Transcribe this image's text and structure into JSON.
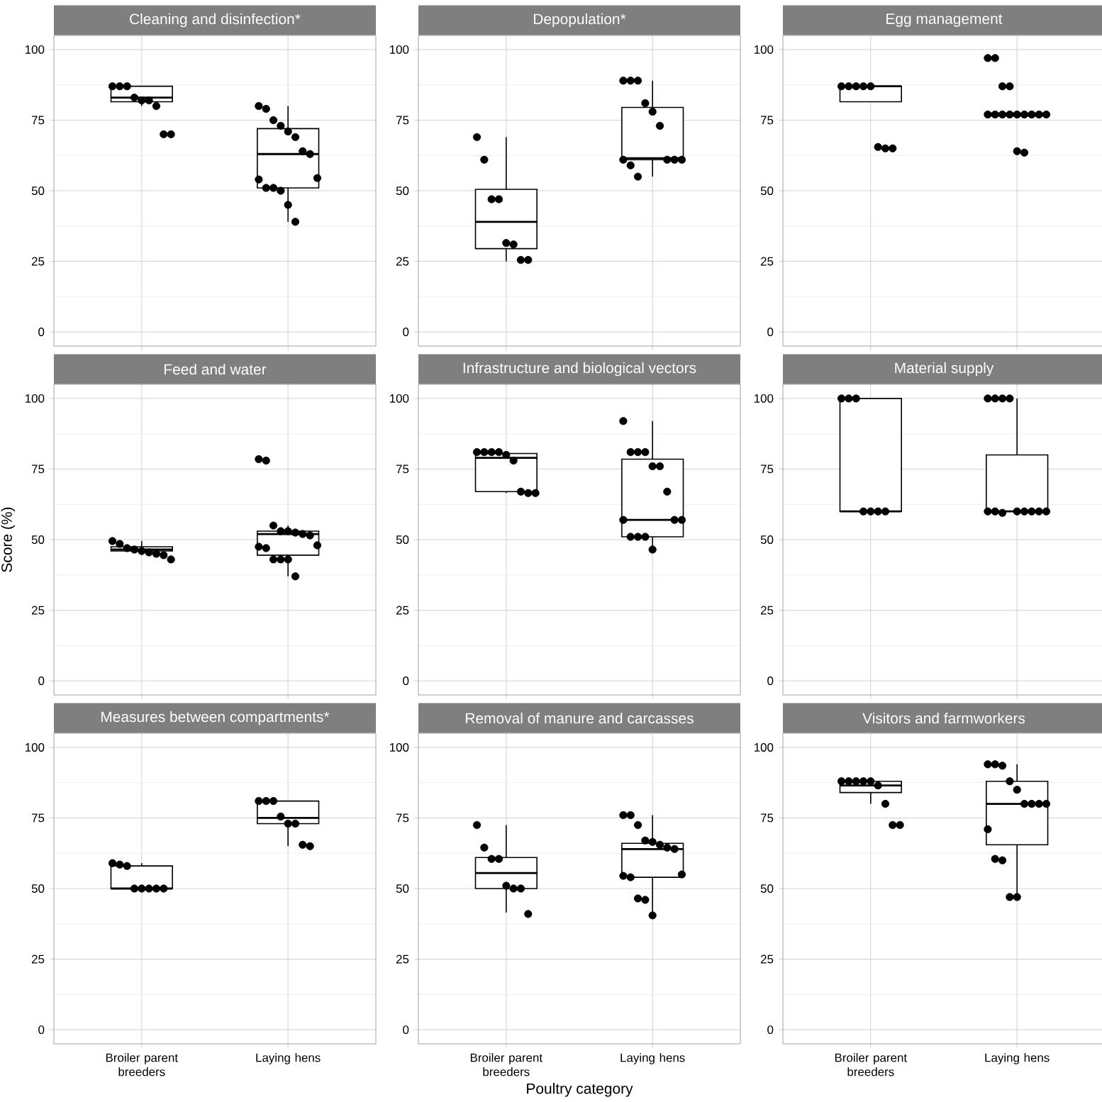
{
  "chart_data": [
    {
      "type": "box",
      "title": "Cleaning and disinfection*",
      "categories": [
        "Broiler parent breeders",
        "Laying hens"
      ],
      "boxes": [
        {
          "low": 80,
          "q1": 81.5,
          "median": 83,
          "q3": 87,
          "high": 87
        },
        {
          "low": 39,
          "q1": 51,
          "median": 63,
          "q3": 72,
          "high": 80
        }
      ],
      "series": [
        {
          "type": "scatter",
          "color": "#000000",
          "x": [
            "Broiler parent breeders",
            "Broiler parent breeders",
            "Broiler parent breeders",
            "Broiler parent breeders",
            "Broiler parent breeders",
            "Broiler parent breeders",
            "Broiler parent breeders",
            "Broiler parent breeders",
            "Broiler parent breeders",
            "Laying hens",
            "Laying hens",
            "Laying hens",
            "Laying hens",
            "Laying hens",
            "Laying hens",
            "Laying hens",
            "Laying hens",
            "Laying hens",
            "Laying hens",
            "Laying hens",
            "Laying hens",
            "Laying hens",
            "Laying hens",
            "Laying hens"
          ],
          "values": [
            87,
            87,
            87,
            83,
            82,
            82,
            80,
            70,
            70,
            80,
            79,
            75,
            73,
            71,
            69,
            64,
            63,
            54.5,
            54,
            51,
            51,
            50,
            45,
            39
          ]
        }
      ],
      "ylim": [
        -5,
        105
      ],
      "yticks": [
        0,
        25,
        50,
        75,
        100
      ],
      "grid": true,
      "marker": "circle",
      "tick_labels": "y"
    },
    {
      "type": "box",
      "title": "Depopulation*",
      "categories": [
        "Broiler parent breeders",
        "Laying hens"
      ],
      "boxes": [
        {
          "low": 25,
          "q1": 29.5,
          "median": 39,
          "q3": 50.5,
          "high": 69
        },
        {
          "low": 55,
          "q1": 61,
          "median": 61.5,
          "q3": 79.5,
          "high": 89
        }
      ],
      "series": [
        {
          "type": "scatter",
          "color": "#000000",
          "x": [
            "Broiler parent breeders",
            "Broiler parent breeders",
            "Broiler parent breeders",
            "Broiler parent breeders",
            "Broiler parent breeders",
            "Broiler parent breeders",
            "Broiler parent breeders",
            "Broiler parent breeders",
            "Laying hens",
            "Laying hens",
            "Laying hens",
            "Laying hens",
            "Laying hens",
            "Laying hens",
            "Laying hens",
            "Laying hens",
            "Laying hens",
            "Laying hens",
            "Laying hens",
            "Laying hens"
          ],
          "values": [
            69,
            61,
            47,
            47,
            31.5,
            31,
            25.5,
            25.5,
            89,
            89,
            89,
            81,
            78,
            73,
            61,
            61,
            61,
            61,
            59,
            55
          ]
        }
      ],
      "ylim": [
        -5,
        105
      ],
      "yticks": [
        0,
        25,
        50,
        75,
        100
      ],
      "grid": true,
      "marker": "circle",
      "tick_labels": "y"
    },
    {
      "type": "box",
      "title": "Egg management",
      "categories": [
        "Broiler parent breeders",
        "Laying hens"
      ],
      "boxes": [
        {
          "low": 81.5,
          "q1": 81.5,
          "median": 87,
          "q3": 87,
          "high": 87
        },
        {
          "low": 76.5,
          "q1": 76.5,
          "median": 77,
          "q3": 77.5,
          "high": 77.5
        }
      ],
      "series": [
        {
          "type": "scatter",
          "color": "#000000",
          "x": [
            "Broiler parent breeders",
            "Broiler parent breeders",
            "Broiler parent breeders",
            "Broiler parent breeders",
            "Broiler parent breeders",
            "Broiler parent breeders",
            "Broiler parent breeders",
            "Broiler parent breeders",
            "Laying hens",
            "Laying hens",
            "Laying hens",
            "Laying hens",
            "Laying hens",
            "Laying hens",
            "Laying hens",
            "Laying hens",
            "Laying hens",
            "Laying hens",
            "Laying hens",
            "Laying hens",
            "Laying hens",
            "Laying hens",
            "Laying hens"
          ],
          "values": [
            87,
            87,
            87,
            87,
            87,
            65.5,
            65,
            65,
            97,
            97,
            87,
            87,
            77,
            77,
            77,
            77,
            77,
            77,
            77,
            77,
            77,
            64,
            63.5
          ]
        }
      ],
      "ylim": [
        -5,
        105
      ],
      "yticks": [
        0,
        25,
        50,
        75,
        100
      ],
      "grid": true,
      "marker": "circle",
      "tick_labels": "y"
    },
    {
      "type": "box",
      "title": "Feed and water",
      "ylabel": "Score (%)",
      "categories": [
        "Broiler parent breeders",
        "Laying hens"
      ],
      "boxes": [
        {
          "low": 44.5,
          "q1": 46,
          "median": 46.5,
          "q3": 47.5,
          "high": 49.5
        },
        {
          "low": 37,
          "q1": 44.5,
          "median": 52,
          "q3": 53,
          "high": 55
        }
      ],
      "series": [
        {
          "type": "scatter",
          "color": "#000000",
          "x": [
            "Broiler parent breeders",
            "Broiler parent breeders",
            "Broiler parent breeders",
            "Broiler parent breeders",
            "Broiler parent breeders",
            "Broiler parent breeders",
            "Broiler parent breeders",
            "Broiler parent breeders",
            "Broiler parent breeders",
            "Laying hens",
            "Laying hens",
            "Laying hens",
            "Laying hens",
            "Laying hens",
            "Laying hens",
            "Laying hens",
            "Laying hens",
            "Laying hens",
            "Laying hens",
            "Laying hens",
            "Laying hens",
            "Laying hens",
            "Laying hens",
            "Laying hens"
          ],
          "values": [
            49.5,
            48.5,
            47,
            46.5,
            46,
            45.5,
            45,
            44.5,
            43,
            78.5,
            78,
            55,
            53,
            53,
            52.5,
            52,
            51.5,
            48,
            47.5,
            47,
            43,
            43,
            43,
            37
          ]
        }
      ],
      "ylim": [
        -5,
        105
      ],
      "yticks": [
        0,
        25,
        50,
        75,
        100
      ],
      "grid": true,
      "marker": "circle",
      "tick_labels": "y"
    },
    {
      "type": "box",
      "title": "Infrastructure and biological vectors",
      "categories": [
        "Broiler parent breeders",
        "Laying hens"
      ],
      "boxes": [
        {
          "low": 66.5,
          "q1": 67,
          "median": 79,
          "q3": 80.5,
          "high": 81
        },
        {
          "low": 46,
          "q1": 51,
          "median": 57,
          "q3": 78.5,
          "high": 92
        }
      ],
      "series": [
        {
          "type": "scatter",
          "color": "#000000",
          "x": [
            "Broiler parent breeders",
            "Broiler parent breeders",
            "Broiler parent breeders",
            "Broiler parent breeders",
            "Broiler parent breeders",
            "Broiler parent breeders",
            "Broiler parent breeders",
            "Broiler parent breeders",
            "Broiler parent breeders",
            "Laying hens",
            "Laying hens",
            "Laying hens",
            "Laying hens",
            "Laying hens",
            "Laying hens",
            "Laying hens",
            "Laying hens",
            "Laying hens",
            "Laying hens",
            "Laying hens",
            "Laying hens",
            "Laying hens",
            "Laying hens"
          ],
          "values": [
            81,
            81,
            81,
            81,
            80,
            78,
            67,
            66.5,
            66.5,
            92,
            81,
            81,
            81,
            76,
            76,
            67,
            57,
            57,
            57,
            51,
            51,
            51,
            46.5
          ]
        }
      ],
      "ylim": [
        -5,
        105
      ],
      "yticks": [
        0,
        25,
        50,
        75,
        100
      ],
      "grid": true,
      "marker": "circle",
      "tick_labels": "y"
    },
    {
      "type": "box",
      "title": "Material supply",
      "categories": [
        "Broiler parent breeders",
        "Laying hens"
      ],
      "boxes": [
        {
          "low": 60,
          "q1": 60,
          "median": 60,
          "q3": 100,
          "high": 100
        },
        {
          "low": 60,
          "q1": 60,
          "median": 60,
          "q3": 80,
          "high": 100
        }
      ],
      "series": [
        {
          "type": "scatter",
          "color": "#000000",
          "x": [
            "Broiler parent breeders",
            "Broiler parent breeders",
            "Broiler parent breeders",
            "Broiler parent breeders",
            "Broiler parent breeders",
            "Broiler parent breeders",
            "Broiler parent breeders",
            "Laying hens",
            "Laying hens",
            "Laying hens",
            "Laying hens",
            "Laying hens",
            "Laying hens",
            "Laying hens",
            "Laying hens",
            "Laying hens",
            "Laying hens",
            "Laying hens",
            "Laying hens"
          ],
          "values": [
            100,
            100,
            100,
            60,
            60,
            60,
            60,
            100,
            100,
            100,
            100,
            60,
            60,
            60,
            60,
            60,
            60,
            60,
            59.5
          ]
        }
      ],
      "ylim": [
        -5,
        105
      ],
      "yticks": [
        0,
        25,
        50,
        75,
        100
      ],
      "grid": true,
      "marker": "circle",
      "tick_labels": "y"
    },
    {
      "type": "box",
      "title": "Measures between compartments*",
      "categories": [
        "Broiler parent breeders",
        "Laying hens"
      ],
      "boxes": [
        {
          "low": 50,
          "q1": 50,
          "median": 50,
          "q3": 58,
          "high": 59
        },
        {
          "low": 65,
          "q1": 73,
          "median": 75,
          "q3": 81,
          "high": 81
        }
      ],
      "series": [
        {
          "type": "scatter",
          "color": "#000000",
          "x": [
            "Broiler parent breeders",
            "Broiler parent breeders",
            "Broiler parent breeders",
            "Broiler parent breeders",
            "Broiler parent breeders",
            "Broiler parent breeders",
            "Broiler parent breeders",
            "Broiler parent breeders",
            "Laying hens",
            "Laying hens",
            "Laying hens",
            "Laying hens",
            "Laying hens",
            "Laying hens",
            "Laying hens",
            "Laying hens"
          ],
          "values": [
            59,
            58.5,
            58,
            50,
            50,
            50,
            50,
            50,
            81,
            81,
            81,
            75.5,
            73,
            73,
            65.5,
            65
          ]
        }
      ],
      "ylim": [
        -5,
        105
      ],
      "yticks": [
        0,
        25,
        50,
        75,
        100
      ],
      "grid": true,
      "marker": "circle"
    },
    {
      "type": "box",
      "title": "Removal of manure and carcasses",
      "xlabel": "Poultry category",
      "categories": [
        "Broiler parent breeders",
        "Laying hens"
      ],
      "boxes": [
        {
          "low": 41.5,
          "q1": 50,
          "median": 55.5,
          "q3": 61,
          "high": 72.5
        },
        {
          "low": 40.5,
          "q1": 54,
          "median": 64,
          "q3": 66,
          "high": 76
        }
      ],
      "series": [
        {
          "type": "scatter",
          "color": "#000000",
          "x": [
            "Broiler parent breeders",
            "Broiler parent breeders",
            "Broiler parent breeders",
            "Broiler parent breeders",
            "Broiler parent breeders",
            "Broiler parent breeders",
            "Broiler parent breeders",
            "Broiler parent breeders",
            "Laying hens",
            "Laying hens",
            "Laying hens",
            "Laying hens",
            "Laying hens",
            "Laying hens",
            "Laying hens",
            "Laying hens",
            "Laying hens",
            "Laying hens",
            "Laying hens",
            "Laying hens",
            "Laying hens",
            "Laying hens"
          ],
          "values": [
            72.5,
            64.5,
            60.5,
            60.5,
            51,
            50,
            50,
            41,
            76,
            76,
            72.5,
            67,
            66.5,
            65.5,
            64.5,
            64,
            55,
            54.5,
            54,
            46.5,
            46,
            40.5
          ]
        }
      ],
      "ylim": [
        -5,
        105
      ],
      "yticks": [
        0,
        25,
        50,
        75,
        100
      ],
      "grid": true,
      "marker": "circle"
    },
    {
      "type": "box",
      "title": "Visitors and farmworkers",
      "categories": [
        "Broiler parent breeders",
        "Laying hens"
      ],
      "boxes": [
        {
          "low": 80,
          "q1": 84,
          "median": 86.5,
          "q3": 88,
          "high": 88
        },
        {
          "low": 47,
          "q1": 65.5,
          "median": 80,
          "q3": 88,
          "high": 94
        }
      ],
      "series": [
        {
          "type": "scatter",
          "color": "#000000",
          "x": [
            "Broiler parent breeders",
            "Broiler parent breeders",
            "Broiler parent breeders",
            "Broiler parent breeders",
            "Broiler parent breeders",
            "Broiler parent breeders",
            "Broiler parent breeders",
            "Broiler parent breeders",
            "Broiler parent breeders",
            "Laying hens",
            "Laying hens",
            "Laying hens",
            "Laying hens",
            "Laying hens",
            "Laying hens",
            "Laying hens",
            "Laying hens",
            "Laying hens",
            "Laying hens",
            "Laying hens",
            "Laying hens",
            "Laying hens",
            "Laying hens"
          ],
          "values": [
            88,
            88,
            88,
            88,
            88,
            86.5,
            80,
            72.5,
            72.5,
            94,
            94,
            93.5,
            88,
            85,
            80,
            80,
            80,
            80,
            71,
            60.5,
            60,
            47,
            47
          ]
        }
      ],
      "ylim": [
        -5,
        105
      ],
      "yticks": [
        0,
        25,
        50,
        75,
        100
      ],
      "grid": true,
      "marker": "circle"
    }
  ]
}
